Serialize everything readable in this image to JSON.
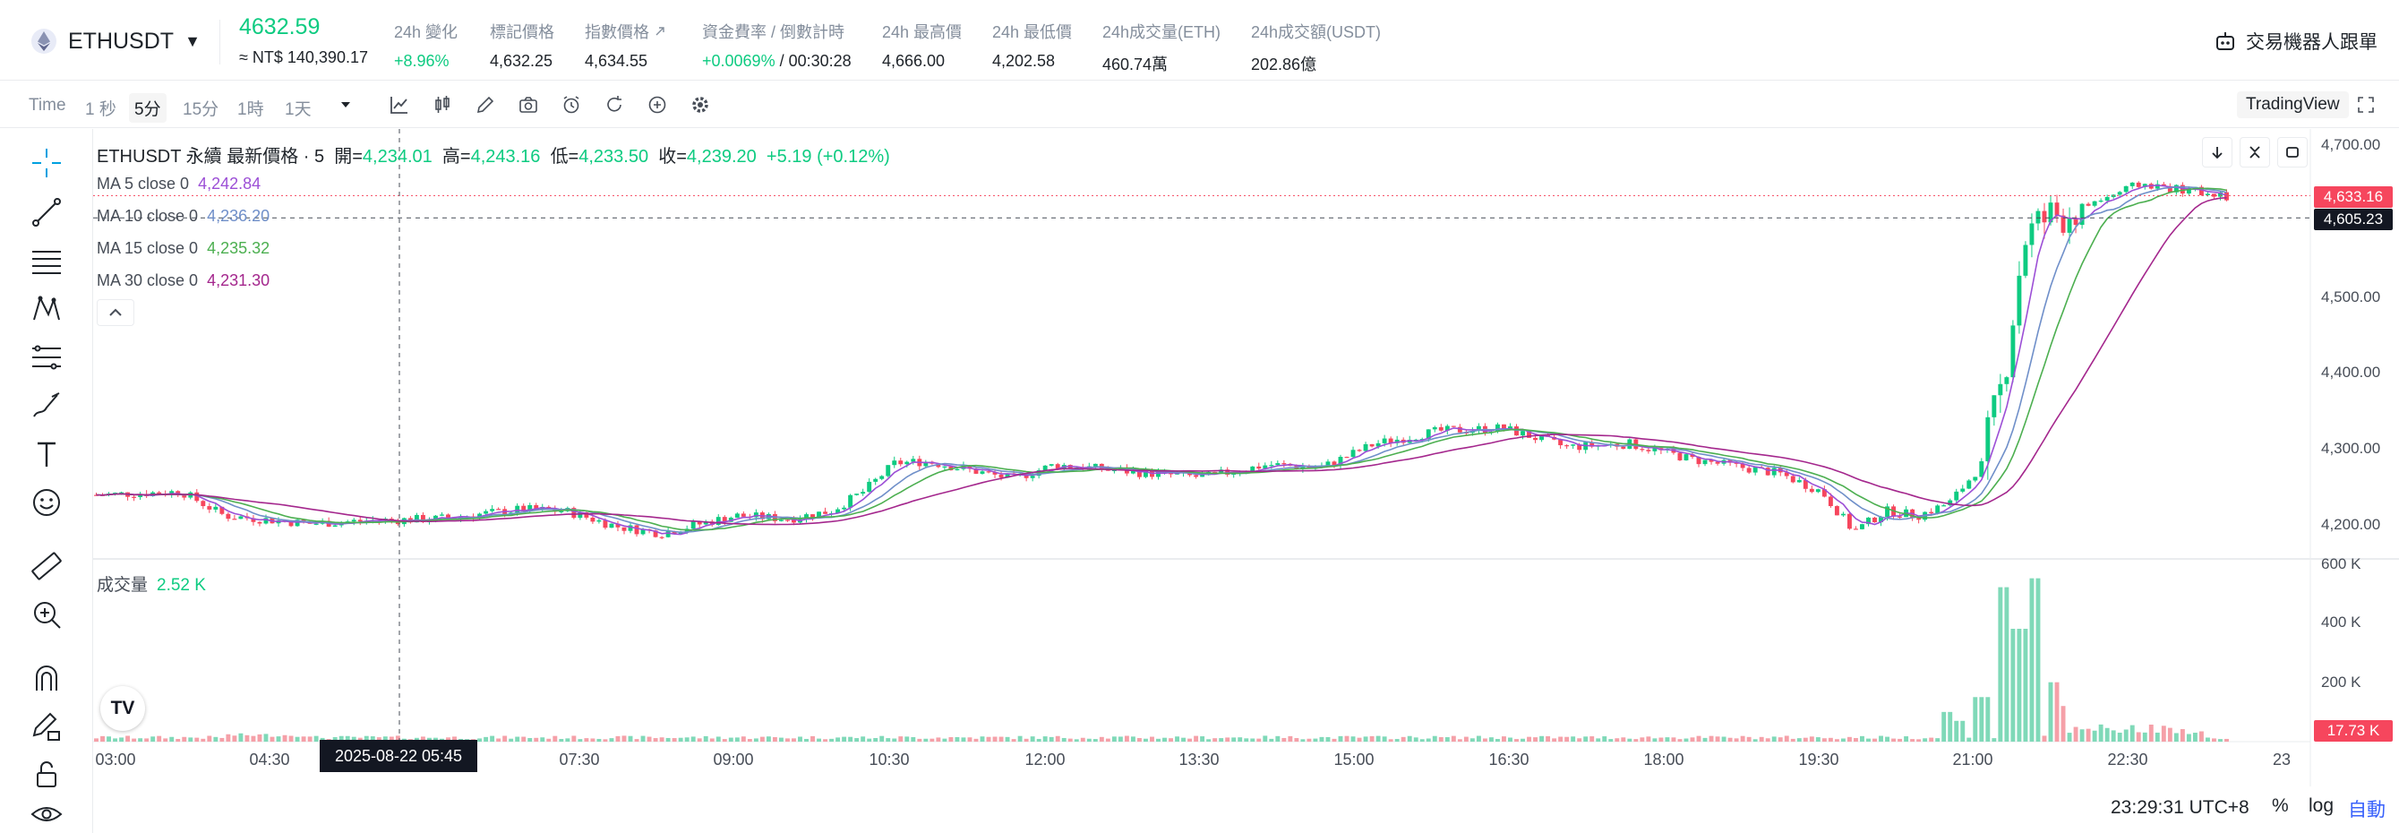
{
  "header": {
    "symbol": "ETHUSDT",
    "last_price": "4632.59",
    "twd_price": "≈ NT$ 140,390.17",
    "stats": [
      {
        "label": "24h 變化",
        "value": "+8.96%",
        "positive": true
      },
      {
        "label": "標記價格",
        "value": "4,632.25"
      },
      {
        "label": "指數價格",
        "value": "4,634.55"
      },
      {
        "label": "資金費率 / 倒數計時",
        "value": "+0.0069%",
        "value2": " / 00:30:28",
        "positive": true
      },
      {
        "label": "24h 最高價",
        "value": "4,666.00"
      },
      {
        "label": "24h 最低價",
        "value": "4,202.58"
      },
      {
        "label": "24h成交量(ETH)",
        "value": "460.74萬"
      },
      {
        "label": "24h成交額(USDT)",
        "value": "202.86億"
      }
    ],
    "bot_button": "交易機器人跟單"
  },
  "toolbar": {
    "timeframes": [
      "Time",
      "1 秒",
      "5分",
      "15分",
      "1時",
      "1天"
    ],
    "active_timeframe": "5分",
    "tradingview_label": "TradingView"
  },
  "legend": {
    "title": "ETHUSDT 永續 最新價格 · 5",
    "open_label": "開=",
    "open": "4,234.01",
    "high_label": "高=",
    "high": "4,243.16",
    "low_label": "低=",
    "low": "4,233.50",
    "close_label": "收=",
    "close": "4,239.20",
    "change": "+5.19 (+0.12%)",
    "ma": [
      {
        "label": "MA 5 close 0",
        "value": "4,242.84",
        "color": "#9c4fd6"
      },
      {
        "label": "MA 10 close 0",
        "value": "4,236.20",
        "color": "#6f8fc9"
      },
      {
        "label": "MA 15 close 0",
        "value": "4,235.32",
        "color": "#4caf50"
      },
      {
        "label": "MA 30 close 0",
        "value": "4,231.30",
        "color": "#a4278d"
      }
    ],
    "volume_label": "成交量",
    "volume_value": "2.52 K"
  },
  "axes": {
    "price_ticks": [
      "4,700.00",
      "4,500.00",
      "4,400.00",
      "4,300.00",
      "4,200.00"
    ],
    "volume_ticks": [
      "600 K",
      "400 K",
      "200 K"
    ],
    "time_ticks": [
      "03:00",
      "04:30",
      "07:30",
      "09:00",
      "10:30",
      "12:00",
      "13:30",
      "15:00",
      "16:30",
      "18:00",
      "19:30",
      "21:00",
      "22:30",
      "23"
    ],
    "crosshair_time": "2025-08-22   05:45",
    "last_price_tag": "4,633.16",
    "crosshair_price_tag": "4,605.23",
    "last_volume_tag": "17.73 K"
  },
  "bottom": {
    "clock": "23:29:31 UTC+8",
    "percent": "%",
    "log": "log",
    "auto": "自動"
  },
  "colors": {
    "up": "#0ecb81",
    "down": "#f6465d",
    "vol_up": "#7fd9b8",
    "vol_down": "#f5a0a8"
  },
  "chart_data": {
    "type": "candlestick",
    "price_range": [
      4180,
      4710
    ],
    "volume_range": [
      0,
      600000
    ],
    "waypoints": [
      {
        "t": 0,
        "p": 4258
      },
      {
        "t": 0.04,
        "p": 4262
      },
      {
        "t": 0.06,
        "p": 4232
      },
      {
        "t": 0.1,
        "p": 4222
      },
      {
        "t": 0.13,
        "p": 4226
      },
      {
        "t": 0.16,
        "p": 4228
      },
      {
        "t": 0.18,
        "p": 4234
      },
      {
        "t": 0.2,
        "p": 4240
      },
      {
        "t": 0.22,
        "p": 4238
      },
      {
        "t": 0.245,
        "p": 4218
      },
      {
        "t": 0.265,
        "p": 4210
      },
      {
        "t": 0.3,
        "p": 4232
      },
      {
        "t": 0.325,
        "p": 4228
      },
      {
        "t": 0.345,
        "p": 4238
      },
      {
        "t": 0.36,
        "p": 4262
      },
      {
        "t": 0.375,
        "p": 4298
      },
      {
        "t": 0.39,
        "p": 4300
      },
      {
        "t": 0.405,
        "p": 4292
      },
      {
        "t": 0.43,
        "p": 4278
      },
      {
        "t": 0.45,
        "p": 4296
      },
      {
        "t": 0.49,
        "p": 4286
      },
      {
        "t": 0.52,
        "p": 4280
      },
      {
        "t": 0.55,
        "p": 4296
      },
      {
        "t": 0.575,
        "p": 4292
      },
      {
        "t": 0.6,
        "p": 4322
      },
      {
        "t": 0.63,
        "p": 4338
      },
      {
        "t": 0.66,
        "p": 4342
      },
      {
        "t": 0.69,
        "p": 4318
      },
      {
        "t": 0.72,
        "p": 4322
      },
      {
        "t": 0.75,
        "p": 4302
      },
      {
        "t": 0.79,
        "p": 4285
      },
      {
        "t": 0.81,
        "p": 4262
      },
      {
        "t": 0.825,
        "p": 4212
      },
      {
        "t": 0.84,
        "p": 4238
      },
      {
        "t": 0.855,
        "p": 4232
      },
      {
        "t": 0.87,
        "p": 4248
      },
      {
        "t": 0.885,
        "p": 4296
      },
      {
        "t": 0.895,
        "p": 4400
      },
      {
        "t": 0.905,
        "p": 4580
      },
      {
        "t": 0.915,
        "p": 4604
      },
      {
        "t": 0.935,
        "p": 4622
      },
      {
        "t": 0.96,
        "p": 4648
      },
      {
        "t": 0.98,
        "p": 4640
      },
      {
        "t": 1,
        "p": 4633
      }
    ],
    "volume_spikes": [
      {
        "t": 0.868,
        "v": 100000
      },
      {
        "t": 0.875,
        "v": 70000
      },
      {
        "t": 0.885,
        "v": 150000
      },
      {
        "t": 0.895,
        "v": 520000
      },
      {
        "t": 0.903,
        "v": 380000
      },
      {
        "t": 0.91,
        "v": 550000
      },
      {
        "t": 0.918,
        "v": 200000
      },
      {
        "t": 0.925,
        "v": 120000
      }
    ]
  }
}
